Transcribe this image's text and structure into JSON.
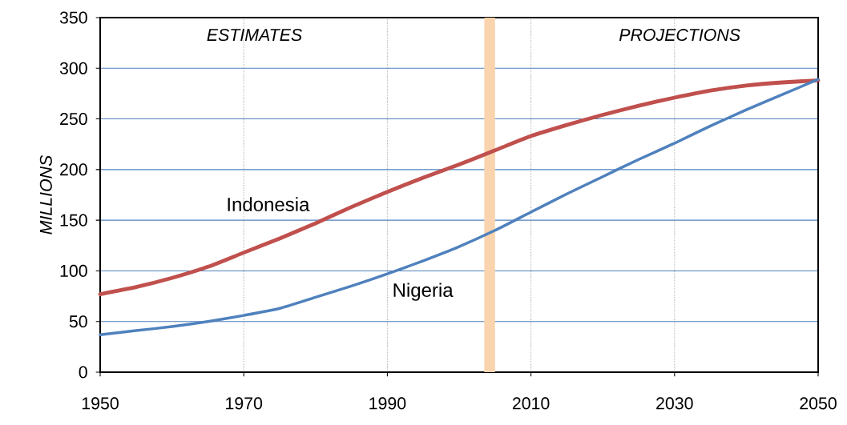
{
  "chart_data": {
    "type": "line",
    "ylabel": "MILLIONS",
    "x": [
      1950,
      1955,
      1960,
      1965,
      1970,
      1975,
      1980,
      1985,
      1990,
      1995,
      2000,
      2005,
      2010,
      2015,
      2020,
      2025,
      2030,
      2035,
      2040,
      2045,
      2050
    ],
    "series": [
      {
        "name": "Indonesia",
        "color": "#c0504d",
        "values": [
          77,
          84,
          93,
          104,
          118,
          132,
          147,
          163,
          178,
          192,
          205,
          219,
          233,
          244,
          254,
          263,
          271,
          278,
          283,
          286,
          288
        ]
      },
      {
        "name": "Nigeria",
        "color": "#4f81bd",
        "values": [
          37,
          41,
          45,
          50,
          56,
          63,
          74,
          85,
          97,
          110,
          124,
          140,
          158,
          176,
          193,
          210,
          226,
          243,
          259,
          274,
          289
        ]
      }
    ],
    "xlim": [
      1950,
      2050
    ],
    "xticks": [
      1950,
      1970,
      1990,
      2010,
      2030,
      2050
    ],
    "ylim": [
      0,
      350
    ],
    "yticks": [
      0,
      50,
      100,
      150,
      200,
      250,
      300,
      350
    ],
    "grid": true,
    "bands": [
      {
        "axis": "x",
        "from": 2003.5,
        "to": 2005,
        "color": "#fad4ae"
      }
    ],
    "annotations": [
      "ESTIMATES",
      "PROJECTIONS"
    ]
  }
}
